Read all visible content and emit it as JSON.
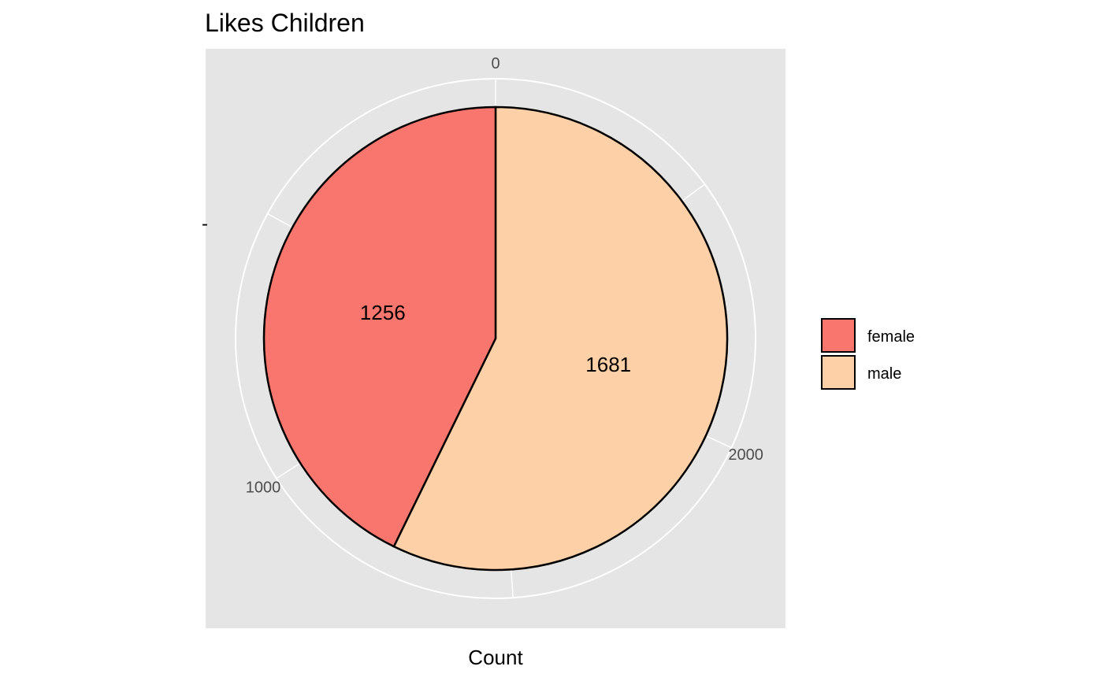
{
  "chart_data": {
    "type": "pie",
    "title": "Likes Children",
    "xlabel": "Count",
    "ylabel": "",
    "y_tick_label": "-",
    "slices": [
      {
        "label": "female",
        "value": 1256,
        "color": "#F8766D"
      },
      {
        "label": "male",
        "value": 1681,
        "color": "#FDD0A8"
      }
    ],
    "angular_axis": {
      "ticks": [
        0,
        1000,
        2000
      ],
      "tick_labels": [
        "0",
        "1000",
        "2000"
      ],
      "grid": true
    },
    "legend": {
      "placement": "right",
      "entries": [
        "female",
        "male"
      ]
    },
    "colors": {
      "panel_background": "#E5E5E5",
      "grid": "#FFFFFF",
      "slice_outline": "#000000"
    }
  }
}
